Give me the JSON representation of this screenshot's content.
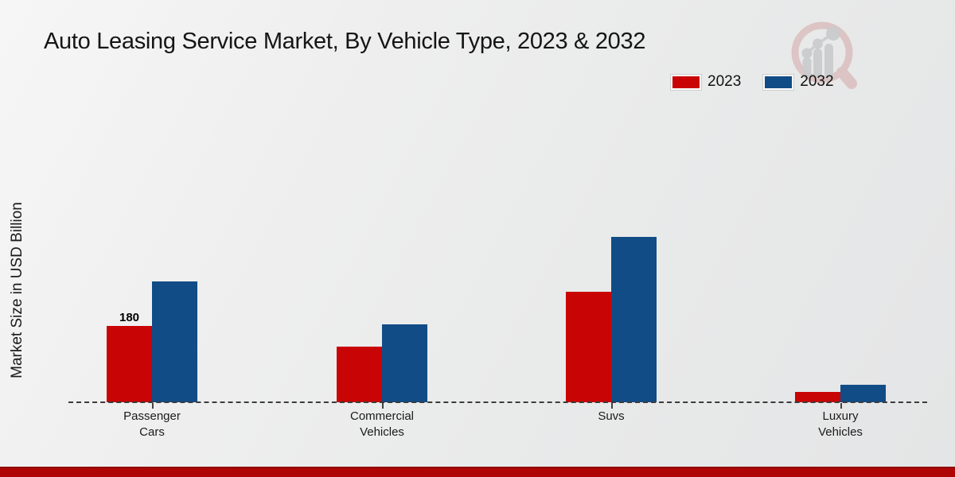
{
  "page_title": "Auto Leasing Service Market, By Vehicle Type, 2023 & 2032",
  "chart_data": {
    "type": "bar",
    "title": "Auto Leasing Service Market, By Vehicle Type, 2023 & 2032",
    "xlabel": "",
    "ylabel": "Market Size in USD Billion",
    "ylim": [
      0,
      420
    ],
    "grid": false,
    "legend_position": "top-right",
    "baseline_style": "dashed",
    "categories": [
      "Passenger Cars",
      "Commercial Vehicles",
      "Suvs",
      "Luxury Vehicles"
    ],
    "category_label_lines": [
      [
        "Passenger",
        "Cars"
      ],
      [
        "Commercial",
        "Vehicles"
      ],
      [
        "Suvs"
      ],
      [
        "Luxury",
        "Vehicles"
      ]
    ],
    "series": [
      {
        "name": "2023",
        "color": "#c90404",
        "values": [
          180,
          132,
          260,
          25
        ],
        "value_labels": [
          "180",
          "",
          "",
          ""
        ]
      },
      {
        "name": "2032",
        "color": "#114c87",
        "values": [
          285,
          184,
          390,
          42
        ],
        "value_labels": [
          "",
          "",
          "",
          ""
        ]
      }
    ]
  },
  "branding": {
    "logo_icon": "magnifier-bar-chart-watermark-icon",
    "logo_ring_color": "#d8b7b7",
    "logo_bars_color": "#cbccce",
    "footer_bar_color": "#b00505"
  }
}
